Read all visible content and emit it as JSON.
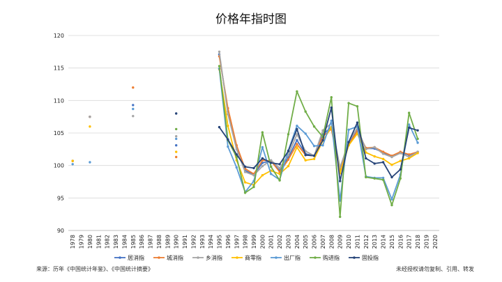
{
  "footer": {
    "source": "来源：历年《中国统计年鉴》、《中国统计摘要》",
    "notice": "未经授权请勿复制、引用、转发"
  },
  "chart_data": {
    "type": "line",
    "title": "价格年指时图",
    "xlabel": "",
    "ylabel": "",
    "ylim": [
      90,
      120
    ],
    "yticks": [
      90,
      95,
      100,
      105,
      110,
      115,
      120
    ],
    "grid": true,
    "legend_position": "bottom",
    "categories": [
      "1978",
      "1979",
      "1980",
      "1981",
      "1982",
      "1983",
      "1984",
      "1985",
      "1986",
      "1987",
      "1988",
      "1989",
      "1990",
      "1991",
      "1992",
      "1993",
      "1994",
      "1995",
      "1996",
      "1997",
      "1998",
      "1999",
      "2000",
      "2001",
      "2002",
      "2003",
      "2004",
      "2005",
      "2006",
      "2007",
      "2008",
      "2009",
      "2010",
      "2011",
      "2012",
      "2013",
      "2014",
      "2015",
      "2016",
      "2017",
      "2018",
      "2019",
      "2020"
    ],
    "series": [
      {
        "name": "居消指",
        "color": "#4472C4",
        "values": [
          100.7,
          null,
          107.5,
          null,
          null,
          null,
          null,
          109.3,
          null,
          null,
          null,
          null,
          103.1,
          null,
          null,
          null,
          null,
          117.1,
          108.3,
          102.8,
          99.2,
          98.6,
          100.4,
          100.7,
          99.2,
          101.2,
          103.9,
          101.8,
          101.5,
          104.8,
          105.9,
          99.3,
          103.3,
          105.4,
          102.6,
          102.6,
          102.0,
          101.4,
          102.0,
          101.6,
          102.1,
          null,
          null
        ]
      },
      {
        "name": "城消指",
        "color": "#ED7D31",
        "values": [
          100.7,
          null,
          107.5,
          null,
          null,
          null,
          null,
          112.0,
          null,
          null,
          null,
          null,
          101.3,
          null,
          null,
          null,
          null,
          116.8,
          108.8,
          103.1,
          99.5,
          98.7,
          100.8,
          100.7,
          99.0,
          100.9,
          103.3,
          101.6,
          101.5,
          104.5,
          105.6,
          99.1,
          103.2,
          105.3,
          102.7,
          102.8,
          102.1,
          101.5,
          102.1,
          101.7,
          102.1,
          null,
          null
        ]
      },
      {
        "name": "乡消指",
        "color": "#A5A5A5",
        "values": [
          100.7,
          null,
          107.5,
          null,
          null,
          null,
          null,
          107.6,
          null,
          null,
          null,
          null,
          104.5,
          null,
          null,
          null,
          null,
          117.5,
          107.9,
          102.5,
          99.0,
          98.5,
          99.9,
          100.8,
          99.6,
          101.6,
          104.8,
          102.2,
          101.5,
          105.4,
          106.5,
          99.7,
          103.6,
          105.8,
          102.5,
          102.8,
          101.8,
          101.3,
          101.9,
          101.3,
          102.1,
          null,
          null
        ]
      },
      {
        "name": "商零指",
        "color": "#FFC000",
        "values": [
          100.7,
          null,
          106.0,
          null,
          null,
          null,
          null,
          null,
          null,
          null,
          null,
          null,
          102.1,
          null,
          null,
          null,
          null,
          114.8,
          106.1,
          100.8,
          97.4,
          97.0,
          98.5,
          99.2,
          98.7,
          99.9,
          102.8,
          100.8,
          101.0,
          103.8,
          105.9,
          98.8,
          103.1,
          104.9,
          102.0,
          101.4,
          101.0,
          100.1,
          100.7,
          101.1,
          101.9,
          null,
          null
        ]
      },
      {
        "name": "出厂指",
        "color": "#5B9BD5",
        "values": [
          100.2,
          null,
          100.5,
          null,
          null,
          null,
          null,
          108.7,
          null,
          null,
          null,
          null,
          104.1,
          null,
          null,
          null,
          null,
          114.9,
          102.9,
          99.7,
          95.9,
          97.6,
          102.8,
          98.7,
          97.8,
          102.3,
          106.1,
          104.9,
          103.0,
          103.1,
          106.9,
          94.6,
          105.5,
          106.0,
          98.3,
          98.1,
          98.1,
          94.8,
          98.6,
          106.3,
          103.5,
          null,
          null
        ]
      },
      {
        "name": "购进指",
        "color": "#70AD47",
        "values": [
          null,
          null,
          null,
          null,
          null,
          null,
          null,
          null,
          null,
          null,
          null,
          null,
          105.6,
          null,
          null,
          null,
          null,
          115.3,
          103.9,
          101.3,
          95.8,
          96.7,
          105.1,
          99.8,
          97.7,
          104.8,
          111.4,
          108.3,
          106.0,
          104.4,
          110.5,
          92.1,
          109.6,
          109.1,
          98.2,
          98.0,
          97.8,
          93.9,
          98.0,
          108.1,
          104.1,
          null,
          null
        ]
      },
      {
        "name": "固投指",
        "color": "#264478",
        "values": [
          null,
          null,
          null,
          null,
          null,
          null,
          null,
          null,
          null,
          null,
          null,
          null,
          108.0,
          null,
          null,
          null,
          null,
          105.9,
          104.0,
          101.7,
          99.8,
          99.6,
          101.1,
          100.4,
          100.2,
          102.2,
          105.6,
          101.6,
          101.5,
          103.9,
          108.9,
          97.6,
          103.6,
          106.6,
          101.1,
          100.3,
          100.5,
          98.2,
          99.4,
          105.8,
          105.4,
          null,
          null
        ]
      }
    ]
  }
}
